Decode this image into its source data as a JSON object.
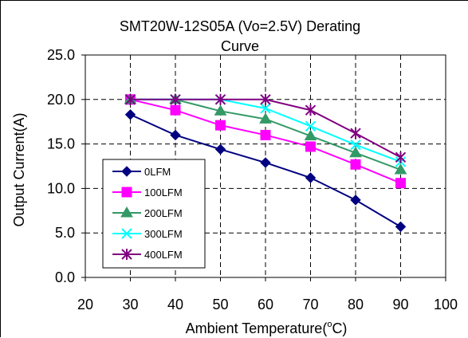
{
  "chart_data": {
    "type": "line",
    "title_line1": "SMT20W-12S05A (Vo=2.5V) Derating",
    "title_line2": "Curve",
    "xlabel_main": "Ambient Temperature(",
    "xlabel_sup": "o",
    "xlabel_end": "C)",
    "ylabel": "Output Current(A)",
    "xlim": [
      20,
      100
    ],
    "ylim": [
      0,
      25
    ],
    "x_ticks": [
      20,
      30,
      40,
      50,
      60,
      70,
      80,
      90,
      100
    ],
    "x_tick_labels": [
      "20",
      "30",
      "40",
      "50",
      "60",
      "70",
      "80",
      "90",
      "100"
    ],
    "y_ticks": [
      0,
      5,
      10,
      15,
      20,
      25
    ],
    "y_tick_labels": [
      "0.0",
      "5.0",
      "10.0",
      "15.0",
      "20.0",
      "25.0"
    ],
    "grid": true,
    "legend_position": "lower-left",
    "x": [
      30,
      40,
      50,
      60,
      70,
      80,
      90
    ],
    "series": [
      {
        "name": "0LFM",
        "color": "#000080",
        "marker": "diamond",
        "values": [
          18.3,
          16.0,
          14.4,
          12.9,
          11.2,
          8.7,
          5.7
        ]
      },
      {
        "name": "100LFM",
        "color": "#ff00ff",
        "marker": "square",
        "values": [
          20.0,
          18.8,
          17.1,
          16.0,
          14.7,
          12.7,
          10.6
        ]
      },
      {
        "name": "200LFM",
        "color": "#339966",
        "marker": "triangle",
        "values": [
          20.0,
          20.0,
          18.7,
          17.8,
          15.9,
          14.0,
          12.1
        ]
      },
      {
        "name": "300LFM",
        "color": "#00ffff",
        "marker": "x",
        "values": [
          20.0,
          20.0,
          20.0,
          19.0,
          17.0,
          14.9,
          13.0
        ]
      },
      {
        "name": "400LFM",
        "color": "#800080",
        "marker": "star",
        "values": [
          20.0,
          20.0,
          20.0,
          20.0,
          18.8,
          16.2,
          13.5
        ]
      }
    ]
  }
}
